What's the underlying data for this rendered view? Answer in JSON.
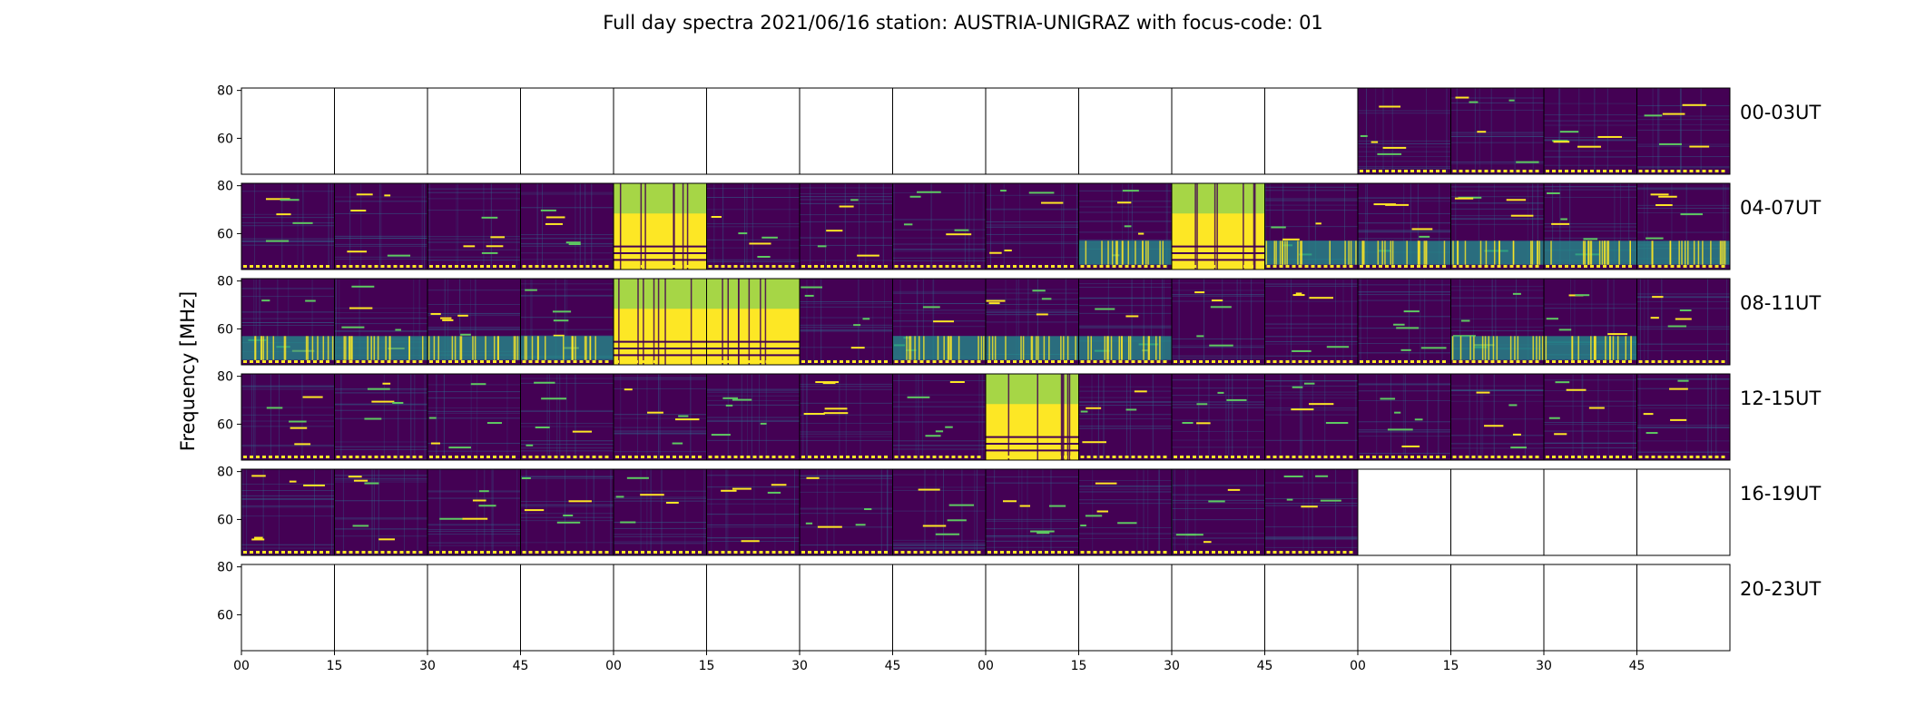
{
  "chart_data": {
    "type": "heatmap",
    "title": "Full day spectra 2021/06/16 station: AUSTRIA-UNIGRAZ with focus-code: 01",
    "ylabel": "Frequency [MHz]",
    "xlabel": "",
    "yticks": [
      "80",
      "60"
    ],
    "ylim": [
      45,
      81
    ],
    "xticks": [
      "00",
      "15",
      "30",
      "45",
      "00",
      "15",
      "30",
      "45",
      "00",
      "15",
      "30",
      "45",
      "00",
      "15",
      "30",
      "45"
    ],
    "colormap": "viridis",
    "colors": {
      "low": "#440154",
      "mid": "#31688e",
      "teal": "#21918c",
      "green": "#5ec962",
      "high": "#fde725"
    },
    "rows": [
      {
        "label": "00-03UT",
        "panels": [
          "empty",
          "empty",
          "empty",
          "empty",
          "empty",
          "empty",
          "empty",
          "empty",
          "empty",
          "empty",
          "empty",
          "empty",
          "data",
          "data",
          "data",
          "data"
        ]
      },
      {
        "label": "04-07UT",
        "panels": [
          "data",
          "data",
          "data",
          "data",
          "burst",
          "data",
          "data",
          "data",
          "data",
          "band",
          "burst",
          "band",
          "band",
          "band",
          "band",
          "band"
        ]
      },
      {
        "label": "08-11UT",
        "panels": [
          "band",
          "band",
          "band",
          "band",
          "burst",
          "burst",
          "data",
          "band",
          "band",
          "band",
          "data",
          "data",
          "data",
          "band",
          "band",
          "data"
        ]
      },
      {
        "label": "12-15UT",
        "panels": [
          "data",
          "data",
          "data",
          "data",
          "data",
          "data",
          "data",
          "data",
          "burst",
          "data",
          "data",
          "data",
          "data",
          "data",
          "data",
          "data"
        ]
      },
      {
        "label": "16-19UT",
        "panels": [
          "data",
          "data",
          "data",
          "data",
          "data",
          "data",
          "data",
          "data",
          "data",
          "data",
          "data",
          "data",
          "empty",
          "empty",
          "empty",
          "empty"
        ]
      },
      {
        "label": "20-23UT",
        "panels": [
          "empty",
          "empty",
          "empty",
          "empty",
          "empty",
          "empty",
          "empty",
          "empty",
          "empty",
          "empty",
          "empty",
          "empty",
          "empty",
          "empty",
          "empty",
          "empty"
        ]
      }
    ]
  }
}
